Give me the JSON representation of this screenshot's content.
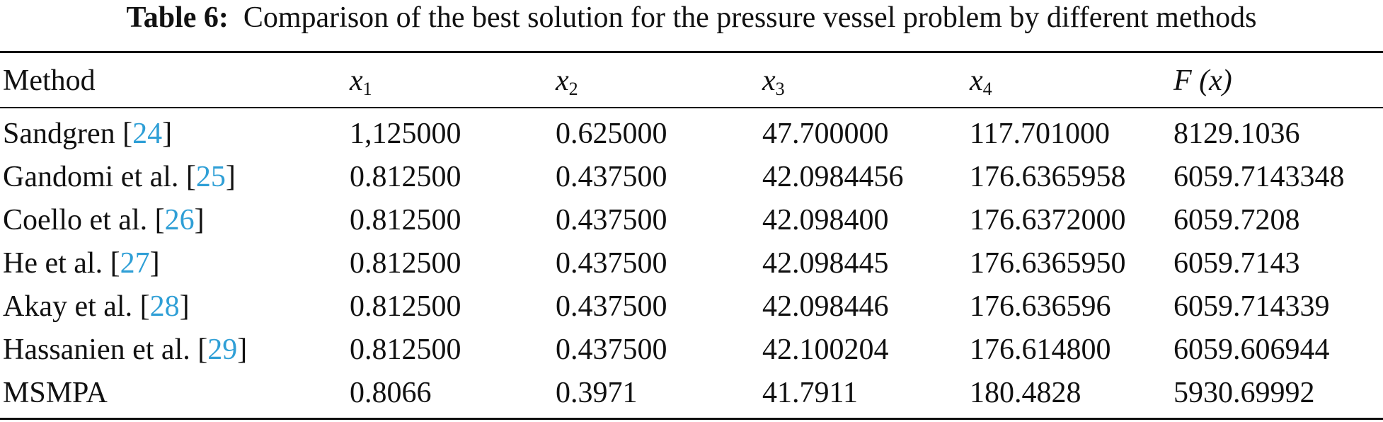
{
  "caption": {
    "label": "Table 6:",
    "text": "Comparison of the best solution for the pressure vessel problem by different methods"
  },
  "table": {
    "headers": [
      {
        "text": "Method"
      },
      {
        "var": "x",
        "sub": "1"
      },
      {
        "var": "x",
        "sub": "2"
      },
      {
        "var": "x",
        "sub": "3"
      },
      {
        "var": "x",
        "sub": "4"
      },
      {
        "var": "F",
        "paren": "(x)"
      }
    ],
    "rows": [
      {
        "method": "Sandgren [",
        "ref": "24",
        "close": "]",
        "x1": "1,125000",
        "x2": "0.625000",
        "x3": "47.700000",
        "x4": "117.701000",
        "fx": "8129.1036"
      },
      {
        "method": "Gandomi et al. [",
        "ref": "25",
        "close": "]",
        "x1": "0.812500",
        "x2": "0.437500",
        "x3": "42.0984456",
        "x4": "176.6365958",
        "fx": "6059.7143348"
      },
      {
        "method": "Coello et al. [",
        "ref": "26",
        "close": "]",
        "x1": "0.812500",
        "x2": "0.437500",
        "x3": "42.098400",
        "x4": "176.6372000",
        "fx": "6059.7208"
      },
      {
        "method": "He et al. [",
        "ref": "27",
        "close": "]",
        "x1": "0.812500",
        "x2": "0.437500",
        "x3": "42.098445",
        "x4": "176.6365950",
        "fx": "6059.7143"
      },
      {
        "method": "Akay et al. [",
        "ref": "28",
        "close": "]",
        "x1": "0.812500",
        "x2": "0.437500",
        "x3": "42.098446",
        "x4": "176.636596",
        "fx": "6059.714339"
      },
      {
        "method": "Hassanien et al. [",
        "ref": "29",
        "close": "]",
        "x1": "0.812500",
        "x2": "0.437500",
        "x3": "42.100204",
        "x4": "176.614800",
        "fx": "6059.606944"
      },
      {
        "method": "MSMPA",
        "ref": "",
        "close": "",
        "x1": "0.8066",
        "x2": "0.3971",
        "x3": "41.7911",
        "x4": "180.4828",
        "fx": "5930.69992"
      }
    ]
  },
  "colors": {
    "text": "#111111",
    "reference_link": "#2f9fd6"
  }
}
